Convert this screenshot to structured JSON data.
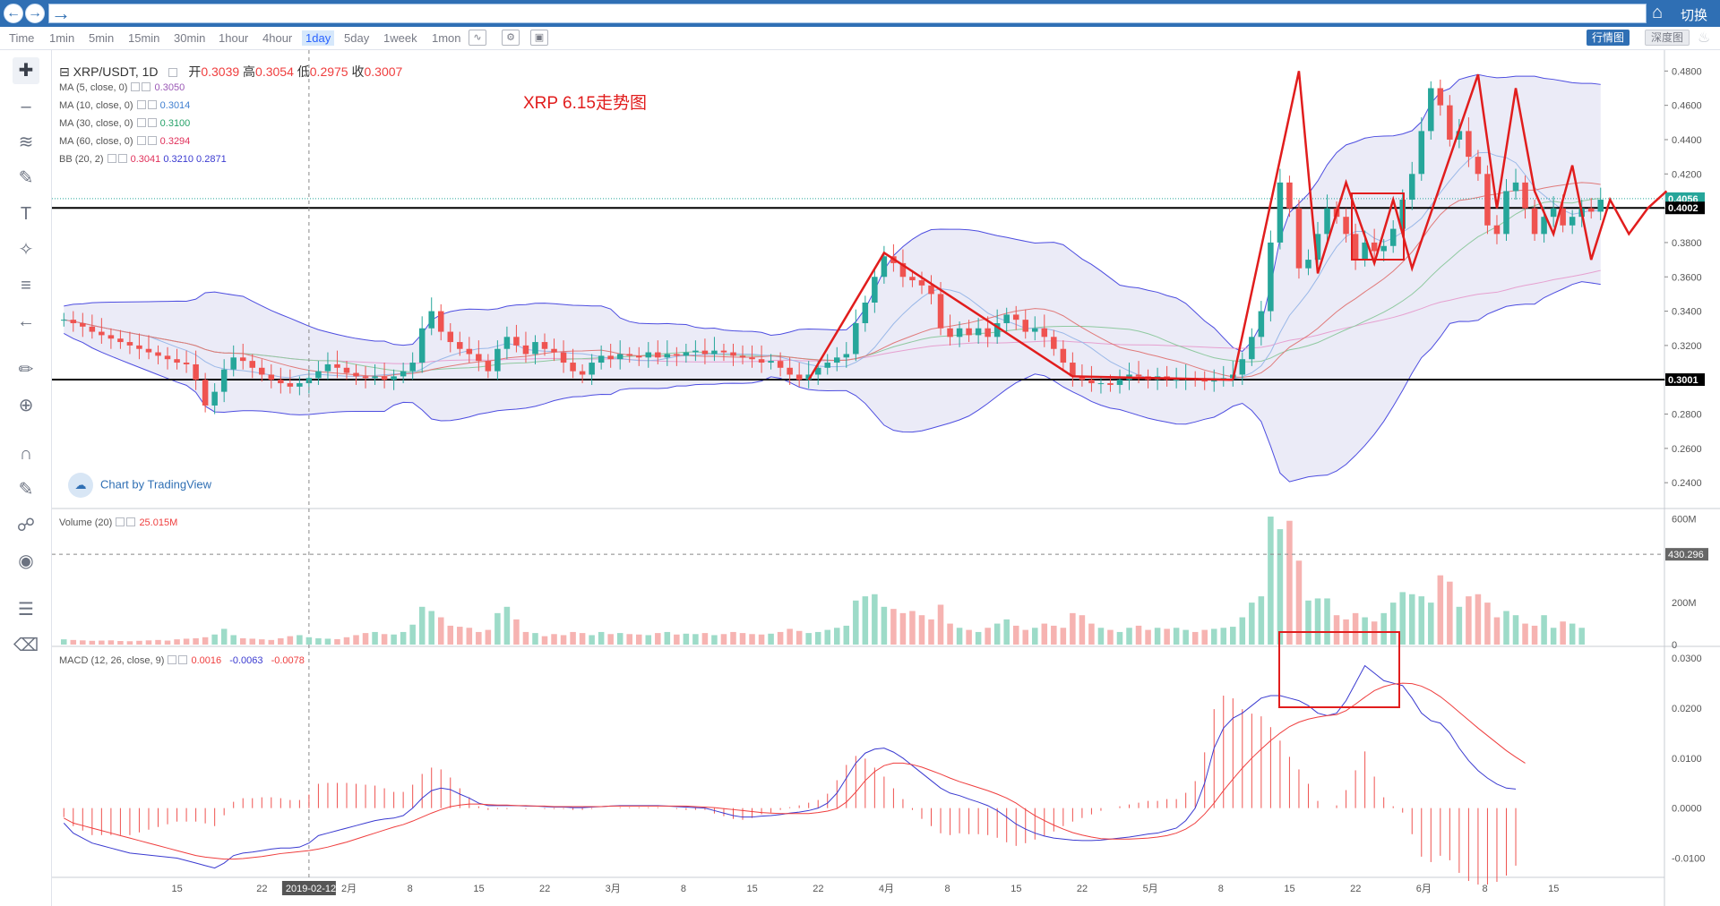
{
  "browser": {
    "back_icon": "back-arrow-icon",
    "forward_icon": "forward-arrow-icon",
    "switch_label": "切换"
  },
  "toolbar": {
    "timeframes": [
      "Time",
      "1min",
      "5min",
      "15min",
      "30min",
      "1hour",
      "4hour",
      "1day",
      "5day",
      "1week",
      "1mon"
    ],
    "active_timeframe": "1day",
    "chart_view_label": "行情图",
    "depth_view_label": "深度图"
  },
  "symbol": {
    "pair": "XRP/USDT, 1D",
    "open_label": "开",
    "open": "0.3039",
    "high_label": "高",
    "high": "0.3054",
    "low_label": "低",
    "low": "0.2975",
    "close_label": "收",
    "close": "0.3007"
  },
  "indicators": [
    {
      "label": "MA (5, close, 0)",
      "values": [
        "0.3050"
      ],
      "colors": [
        "#9b59b6"
      ]
    },
    {
      "label": "MA (10, close, 0)",
      "values": [
        "0.3014"
      ],
      "colors": [
        "#3f7fd0"
      ]
    },
    {
      "label": "MA (30, close, 0)",
      "values": [
        "0.3100"
      ],
      "colors": [
        "#26a269"
      ]
    },
    {
      "label": "MA (60, close, 0)",
      "values": [
        "0.3294"
      ],
      "colors": [
        "#e0305a"
      ]
    },
    {
      "label": "BB (20, 2)",
      "values": [
        "0.3041",
        "0.3210",
        "0.2871"
      ],
      "colors": [
        "#e0305a",
        "#3a3ad0",
        "#3a3ad0"
      ]
    }
  ],
  "annotation_title": "XRP 6.15走势图",
  "watermark": "Chart by TradingView",
  "volume_legend": {
    "label": "Volume (20)",
    "value": "25.015M"
  },
  "macd_legend": {
    "label": "MACD (12, 26, close, 9)",
    "values": [
      "0.0016",
      "-0.0063",
      "-0.0078"
    ]
  },
  "crosshair_date": "2019-02-12",
  "colors": {
    "up": "#26a69a",
    "down": "#ef5350",
    "upVol": "#9ddbc8",
    "downVol": "#f6b3b1",
    "bb_fill": "#e8e8f6",
    "annotation": "#e11d1d"
  },
  "chart_data": [
    {
      "type": "candlestick",
      "title": "XRP/USDT, 1D",
      "y_ticks": [
        0.24,
        0.26,
        0.28,
        0.3,
        0.32,
        0.34,
        0.36,
        0.38,
        0.4,
        0.42,
        0.44,
        0.46,
        0.48
      ],
      "ylim": [
        0.226,
        0.488
      ],
      "price_labels": [
        {
          "value": 0.4056,
          "text": "0.4056",
          "color": "#26a69a"
        },
        {
          "value": 0.4002,
          "text": "0.4002",
          "color": "#000000"
        },
        {
          "value": 0.3001,
          "text": "0.3001",
          "color": "#000000"
        }
      ],
      "horizontal_lines": [
        0.4002,
        0.3001
      ],
      "x_labels": [
        "15",
        "22",
        "2月",
        "8",
        "15",
        "22",
        "3月",
        "8",
        "15",
        "22",
        "4月",
        "8",
        "15",
        "22",
        "5月",
        "8",
        "15",
        "22",
        "6月",
        "8",
        "15"
      ],
      "closes": [
        0.335,
        0.333,
        0.331,
        0.328,
        0.326,
        0.324,
        0.322,
        0.32,
        0.318,
        0.316,
        0.314,
        0.312,
        0.31,
        0.309,
        0.3,
        0.285,
        0.293,
        0.306,
        0.313,
        0.311,
        0.307,
        0.303,
        0.3,
        0.298,
        0.296,
        0.298,
        0.301,
        0.305,
        0.309,
        0.307,
        0.304,
        0.302,
        0.301,
        0.302,
        0.3,
        0.302,
        0.305,
        0.31,
        0.33,
        0.34,
        0.328,
        0.322,
        0.318,
        0.315,
        0.311,
        0.305,
        0.318,
        0.325,
        0.32,
        0.315,
        0.322,
        0.318,
        0.316,
        0.31,
        0.305,
        0.303,
        0.31,
        0.314,
        0.312,
        0.315,
        0.314,
        0.313,
        0.316,
        0.313,
        0.315,
        0.314,
        0.316,
        0.317,
        0.315,
        0.317,
        0.316,
        0.314,
        0.313,
        0.312,
        0.31,
        0.311,
        0.307,
        0.303,
        0.3,
        0.303,
        0.307,
        0.31,
        0.313,
        0.315,
        0.333,
        0.345,
        0.36,
        0.372,
        0.368,
        0.36,
        0.358,
        0.355,
        0.35,
        0.33,
        0.325,
        0.33,
        0.326,
        0.33,
        0.325,
        0.333,
        0.338,
        0.335,
        0.328,
        0.33,
        0.325,
        0.318,
        0.31,
        0.302,
        0.3,
        0.298,
        0.298,
        0.297,
        0.3,
        0.303,
        0.302,
        0.3,
        0.302,
        0.3,
        0.3,
        0.301,
        0.3,
        0.299,
        0.3,
        0.301,
        0.303,
        0.312,
        0.325,
        0.34,
        0.38,
        0.415,
        0.4,
        0.365,
        0.37,
        0.385,
        0.4,
        0.395,
        0.385,
        0.37,
        0.38,
        0.375,
        0.378,
        0.388,
        0.405,
        0.42,
        0.445,
        0.47,
        0.46,
        0.44,
        0.445,
        0.43,
        0.42,
        0.39,
        0.385,
        0.41,
        0.415,
        0.4,
        0.385,
        0.395,
        0.4,
        0.39,
        0.395,
        0.4,
        0.398,
        0.405
      ],
      "opens_offset": "open = previous close"
    },
    {
      "type": "bar",
      "title": "Volume (20)",
      "y_ticks": [
        "0",
        "200M",
        "430.296",
        "600M"
      ],
      "ylim": [
        0,
        640000000
      ],
      "volume_millions": [
        25,
        22,
        20,
        18,
        19,
        20,
        17,
        16,
        18,
        20,
        22,
        19,
        25,
        28,
        30,
        35,
        48,
        75,
        45,
        30,
        28,
        25,
        22,
        30,
        40,
        45,
        35,
        30,
        28,
        26,
        35,
        45,
        55,
        60,
        50,
        48,
        60,
        95,
        180,
        160,
        130,
        90,
        85,
        80,
        60,
        70,
        150,
        180,
        120,
        60,
        55,
        40,
        50,
        45,
        60,
        55,
        45,
        60,
        50,
        55,
        50,
        48,
        45,
        55,
        60,
        48,
        52,
        50,
        55,
        45,
        50,
        60,
        55,
        50,
        48,
        52,
        60,
        75,
        65,
        55,
        60,
        70,
        80,
        90,
        210,
        230,
        240,
        180,
        170,
        150,
        160,
        140,
        120,
        190,
        100,
        80,
        70,
        60,
        80,
        100,
        120,
        90,
        70,
        80,
        100,
        90,
        80,
        150,
        140,
        100,
        80,
        70,
        60,
        80,
        90,
        70,
        80,
        75,
        80,
        70,
        60,
        70,
        75,
        80,
        85,
        130,
        200,
        230,
        610,
        550,
        590,
        400,
        210,
        220,
        220,
        140,
        120,
        150,
        130,
        110,
        150,
        200,
        250,
        240,
        230,
        200,
        330,
        300,
        180,
        230,
        240,
        200,
        130,
        160,
        140,
        100,
        90,
        140,
        80,
        110,
        100,
        80
      ],
      "price_labels": [
        {
          "value": 430.296,
          "text": "430.296"
        }
      ]
    },
    {
      "type": "line",
      "title": "MACD (12, 26, close, 9)",
      "y_ticks": [
        -0.01,
        0,
        0.01,
        0.02,
        0.03
      ],
      "ylim": [
        -0.0135,
        0.032
      ],
      "series": [
        {
          "name": "MACD",
          "color": "#3a3ad0",
          "values": [
            -0.003,
            -0.005,
            -0.006,
            -0.007,
            -0.0075,
            -0.008,
            -0.0085,
            -0.009,
            -0.0092,
            -0.0094,
            -0.0096,
            -0.0098,
            -0.01,
            -0.0105,
            -0.011,
            -0.0115,
            -0.012,
            -0.011,
            -0.0095,
            -0.009,
            -0.0088,
            -0.0085,
            -0.0082,
            -0.008,
            -0.008,
            -0.0078,
            -0.007,
            -0.0055,
            -0.005,
            -0.0045,
            -0.004,
            -0.0035,
            -0.003,
            -0.0025,
            -0.0022,
            -0.002,
            -0.0015,
            0.0,
            0.002,
            0.0035,
            0.004,
            0.0037,
            0.0028,
            0.002,
            0.001,
            0.0005,
            0.0005,
            0.0005,
            0.0005,
            0.0004,
            0.0004,
            0.0003,
            0.0002,
            0.0002,
            0.0001,
            0.0001,
            0.0002,
            0.0003,
            0.0004,
            0.0005,
            0.0005,
            0.0005,
            0.0005,
            0.0005,
            0.0004,
            0.0003,
            0.0002,
            0.0001,
            0.0,
            -0.0005,
            -0.001,
            -0.0015,
            -0.0018,
            -0.0018,
            -0.0016,
            -0.0015,
            -0.0013,
            -0.001,
            -0.0008,
            -0.0005,
            0.0,
            0.001,
            0.003,
            0.006,
            0.009,
            0.011,
            0.0118,
            0.012,
            0.0112,
            0.01,
            0.0085,
            0.007,
            0.0055,
            0.004,
            0.003,
            0.0025,
            0.0018,
            0.0012,
            0.0005,
            -0.0005,
            -0.0018,
            -0.0032,
            -0.0042,
            -0.005,
            -0.0056,
            -0.006,
            -0.0062,
            -0.0064,
            -0.0065,
            -0.0065,
            -0.0064,
            -0.0062,
            -0.006,
            -0.0058,
            -0.0055,
            -0.0052,
            -0.005,
            -0.0045,
            -0.004,
            -0.0025,
            0.0,
            0.005,
            0.012,
            0.016,
            0.018,
            0.019,
            0.0205,
            0.022,
            0.0225,
            0.0225,
            0.022,
            0.0215,
            0.0205,
            0.019,
            0.0185,
            0.019,
            0.0215,
            0.025,
            0.0285,
            0.027,
            0.0255,
            0.025,
            0.0245,
            0.022,
            0.019,
            0.0175,
            0.017,
            0.015,
            0.012,
            0.0095,
            0.0075,
            0.006,
            0.0048,
            0.004,
            0.0038
          ]
        },
        {
          "name": "Signal",
          "color": "#ef3e3e",
          "values": [
            -0.002,
            -0.003,
            -0.0035,
            -0.004,
            -0.0045,
            -0.005,
            -0.0055,
            -0.006,
            -0.0065,
            -0.007,
            -0.0075,
            -0.008,
            -0.0085,
            -0.009,
            -0.0095,
            -0.0098,
            -0.01,
            -0.0102,
            -0.0102,
            -0.0101,
            -0.0099,
            -0.0097,
            -0.0094,
            -0.0091,
            -0.0089,
            -0.0087,
            -0.0085,
            -0.0082,
            -0.0078,
            -0.0073,
            -0.0068,
            -0.0062,
            -0.0056,
            -0.005,
            -0.0044,
            -0.0038,
            -0.0033,
            -0.0026,
            -0.0018,
            -0.001,
            -0.0003,
            0.0003,
            0.0006,
            0.0008,
            0.0008,
            0.0007,
            0.0006,
            0.0006,
            0.0005,
            0.0005,
            0.0004,
            0.0004,
            0.0003,
            0.0003,
            0.0003,
            0.0003,
            0.0003,
            0.0003,
            0.0004,
            0.0004,
            0.0004,
            0.0004,
            0.0004,
            0.0004,
            0.0004,
            0.0004,
            0.0004,
            0.0003,
            0.0002,
            0.0001,
            -0.0001,
            -0.0003,
            -0.0005,
            -0.0007,
            -0.0009,
            -0.001,
            -0.0011,
            -0.0011,
            -0.0011,
            -0.0011,
            -0.0009,
            -0.0006,
            -0.0001,
            0.0012,
            0.0032,
            0.0055,
            0.0073,
            0.0085,
            0.009,
            0.009,
            0.0087,
            0.0082,
            0.0075,
            0.0068,
            0.006,
            0.0053,
            0.0047,
            0.0041,
            0.0035,
            0.0028,
            0.002,
            0.001,
            -0.0003,
            -0.0015,
            -0.0025,
            -0.0034,
            -0.0042,
            -0.0049,
            -0.0054,
            -0.0058,
            -0.0061,
            -0.0062,
            -0.0062,
            -0.0062,
            -0.0061,
            -0.006,
            -0.0058,
            -0.0055,
            -0.005,
            -0.0042,
            -0.003,
            -0.0012,
            0.001,
            0.0035,
            0.0058,
            0.008,
            0.01,
            0.0118,
            0.0135,
            0.015,
            0.0163,
            0.0172,
            0.0178,
            0.0182,
            0.0185,
            0.0187,
            0.0195,
            0.0208,
            0.0222,
            0.0235,
            0.0243,
            0.0248,
            0.025,
            0.0249,
            0.0244,
            0.0235,
            0.0223,
            0.0208,
            0.0192,
            0.0176,
            0.016,
            0.0145,
            0.013,
            0.0115,
            0.0102,
            0.009
          ]
        }
      ],
      "histogram": "MACD minus Signal (drawn as thin bars)"
    }
  ]
}
